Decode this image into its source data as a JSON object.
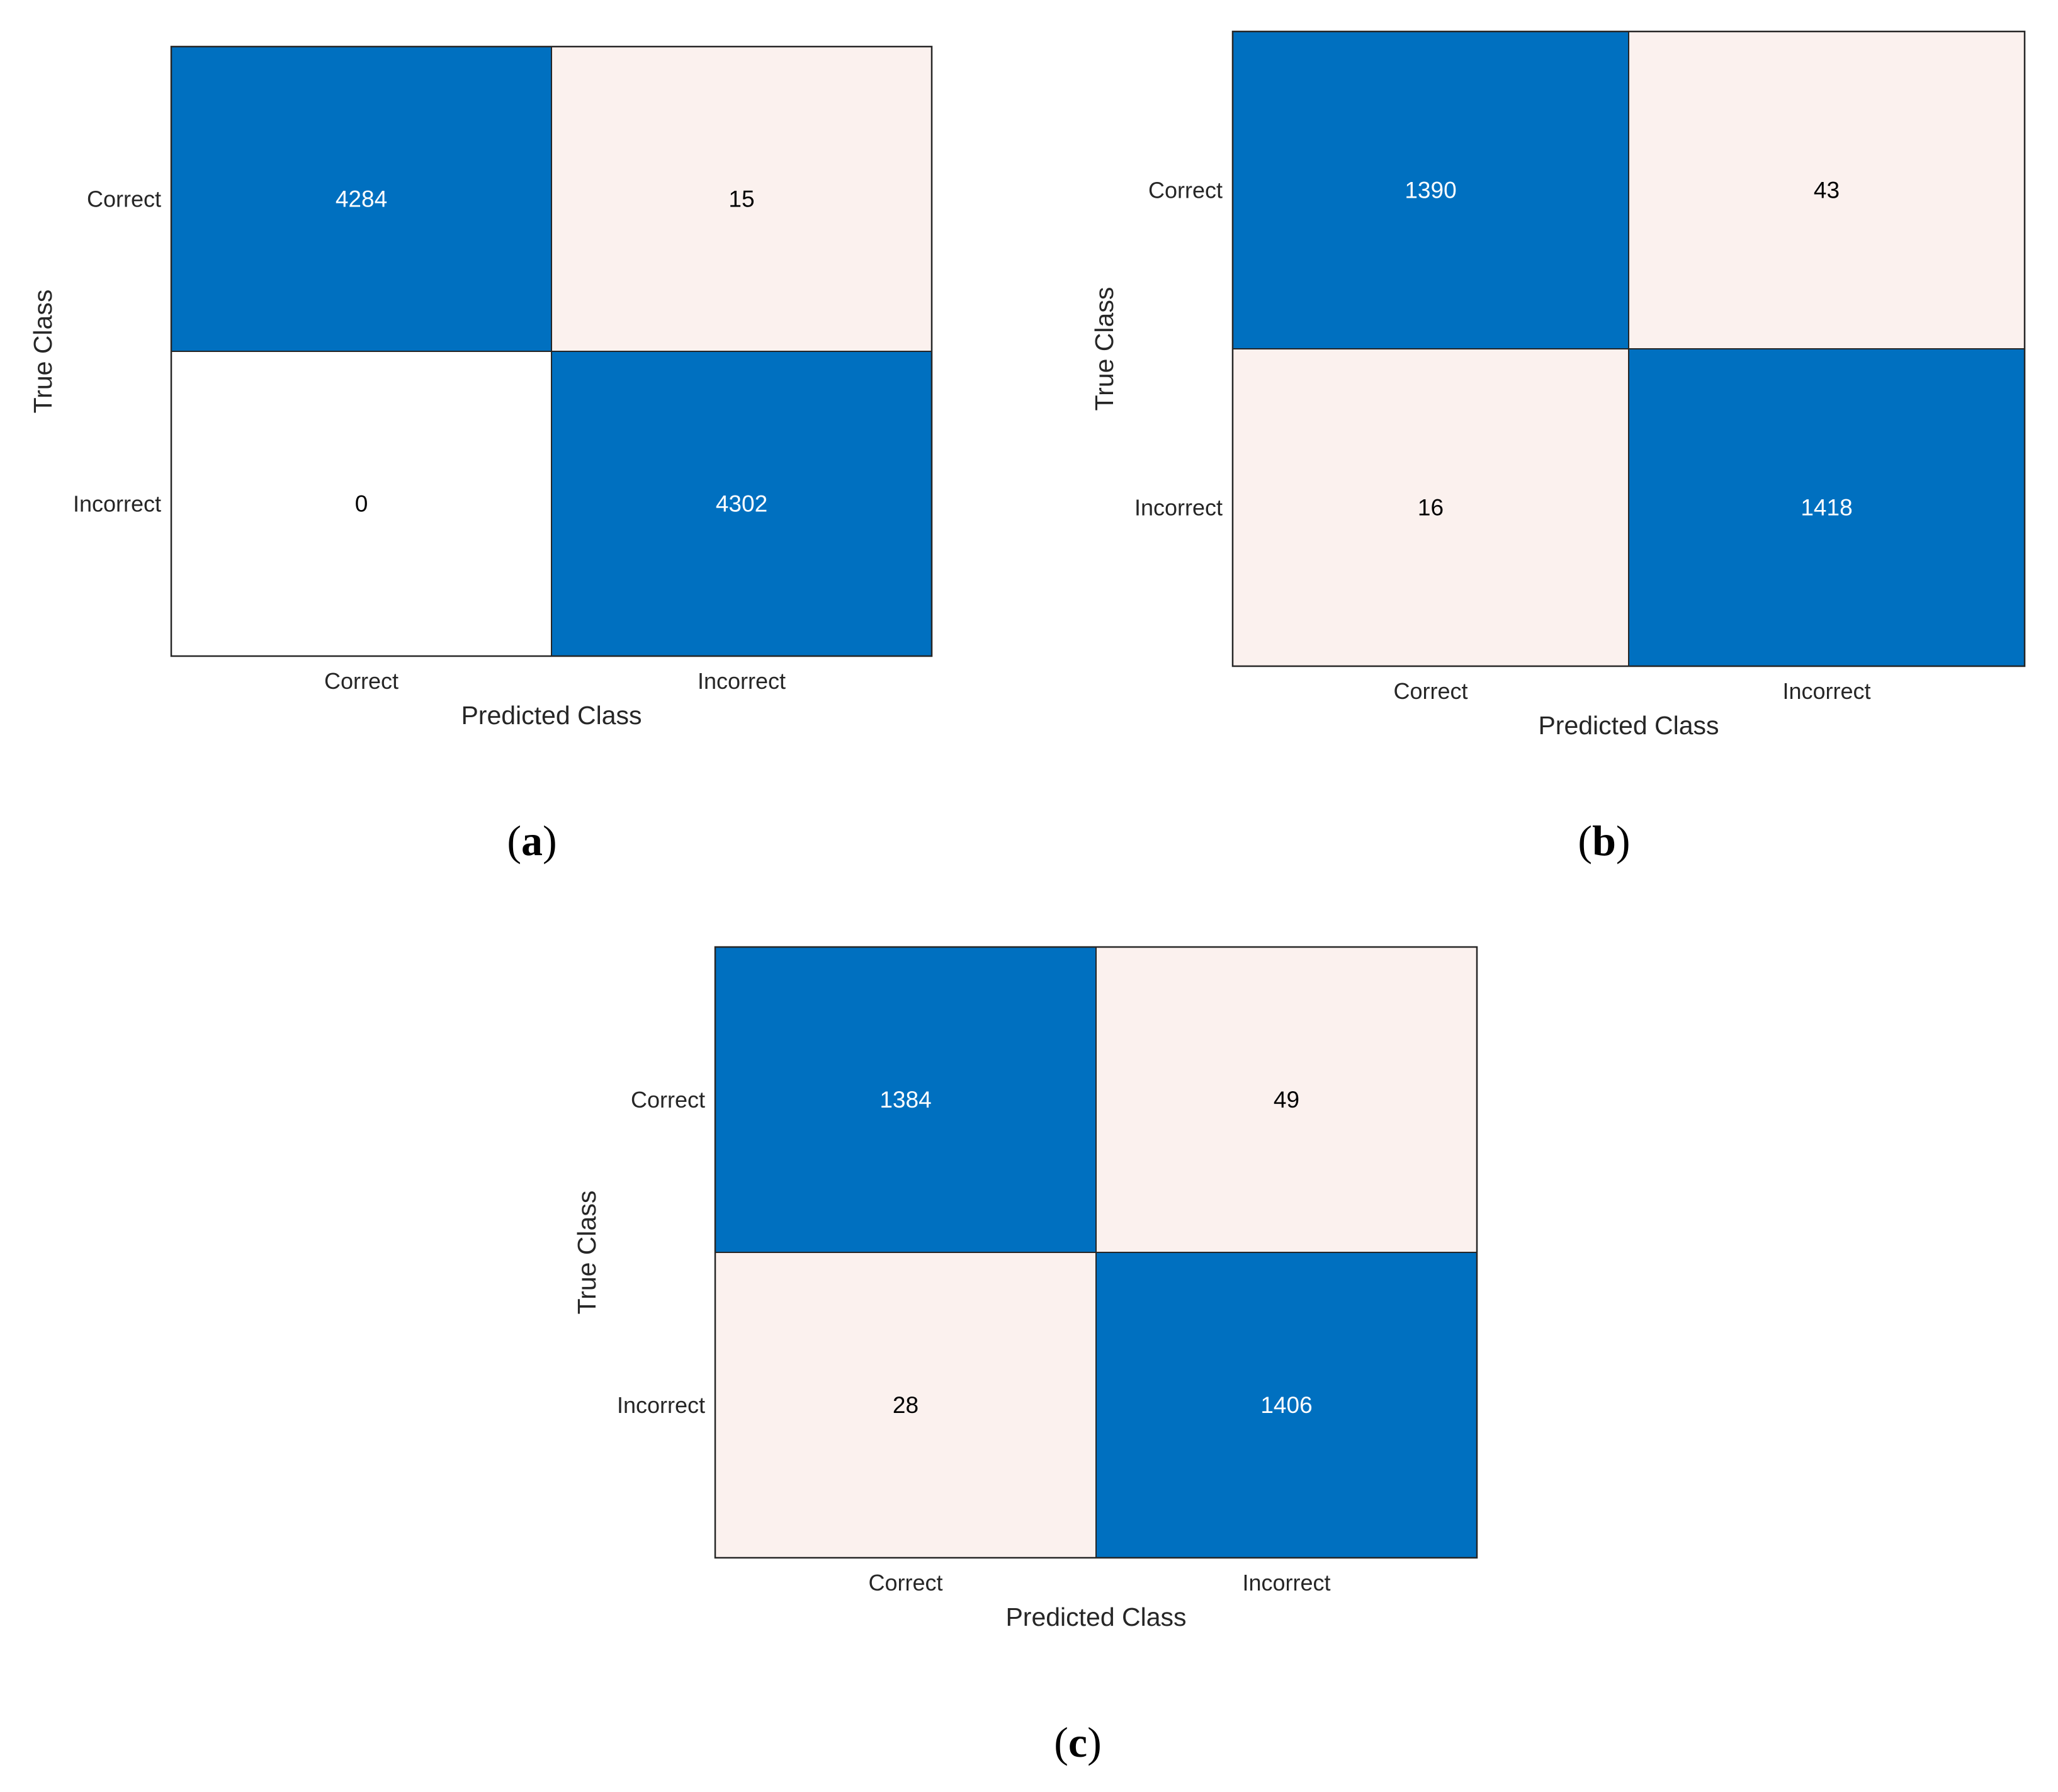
{
  "colors": {
    "high": "#0070c0",
    "high_alt": "#0b74c0",
    "low": "#fbf1ee",
    "zero": "#ffffff",
    "text_on_high": "#ffffff",
    "text_on_low": "#000000",
    "border": "#262626"
  },
  "chart_data": [
    {
      "type": "heatmap",
      "caption": "a",
      "xlabel": "Predicted Class",
      "ylabel": "True Class",
      "x_categories": [
        "Correct",
        "Incorrect"
      ],
      "y_categories": [
        "Correct",
        "Incorrect"
      ],
      "values": [
        [
          4284,
          15
        ],
        [
          0,
          4302
        ]
      ]
    },
    {
      "type": "heatmap",
      "caption": "b",
      "xlabel": "Predicted Class",
      "ylabel": "True Class",
      "x_categories": [
        "Correct",
        "Incorrect"
      ],
      "y_categories": [
        "Correct",
        "Incorrect"
      ],
      "values": [
        [
          1390,
          43
        ],
        [
          16,
          1418
        ]
      ]
    },
    {
      "type": "heatmap",
      "caption": "c",
      "xlabel": "Predicted Class",
      "ylabel": "True Class",
      "x_categories": [
        "Correct",
        "Incorrect"
      ],
      "y_categories": [
        "Correct",
        "Incorrect"
      ],
      "values": [
        [
          1384,
          49
        ],
        [
          28,
          1406
        ]
      ]
    }
  ]
}
